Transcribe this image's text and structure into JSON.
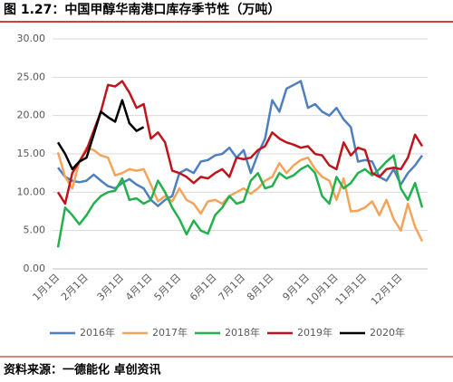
{
  "chart_data": {
    "type": "line",
    "title": "图 1.27：中国甲醇华南港口库存季节性（万吨）",
    "source": "资料来源：一德能化  卓创资讯",
    "categories": [
      "1月1日",
      null,
      null,
      null,
      "2月1日",
      null,
      null,
      null,
      null,
      "3月1日",
      null,
      null,
      null,
      "4月1日",
      null,
      null,
      null,
      "5月1日",
      null,
      null,
      null,
      null,
      "6月1日",
      null,
      null,
      null,
      "7月1日",
      null,
      null,
      null,
      "8月1日",
      null,
      null,
      null,
      null,
      "9月1日",
      null,
      null,
      null,
      "10月1日",
      null,
      null,
      null,
      "11月1日",
      null,
      null,
      null,
      null,
      "12月1日",
      null,
      null,
      null
    ],
    "ylim": [
      0,
      30
    ],
    "yticks": [
      {
        "value": 0,
        "label": "0.00"
      },
      {
        "value": 5,
        "label": "5.00"
      },
      {
        "value": 10,
        "label": "10.00"
      },
      {
        "value": 15,
        "label": "15.00"
      },
      {
        "value": 20,
        "label": "20.00"
      },
      {
        "value": 25,
        "label": "25.00"
      },
      {
        "value": 30,
        "label": "30.00"
      }
    ],
    "grid": true,
    "legend": "bottom",
    "series": [
      {
        "name": "2016年",
        "color": "#4e7fbf",
        "values": [
          13.2,
          12.0,
          11.5,
          11.3,
          11.5,
          12.3,
          11.5,
          10.8,
          10.5,
          11.2,
          11.7,
          11.0,
          10.5,
          9.0,
          8.2,
          9.0,
          9.5,
          12.5,
          13.0,
          12.5,
          14.0,
          14.2,
          14.8,
          15.0,
          15.8,
          14.5,
          15.5,
          12.5,
          15.0,
          17.0,
          22.0,
          20.5,
          23.5,
          24.0,
          24.5,
          21.0,
          21.5,
          20.5,
          20.0,
          21.0,
          19.5,
          18.5,
          14.0,
          14.2,
          14.0,
          12.0,
          11.5,
          13.0,
          11.0,
          12.5,
          13.5,
          14.8
        ]
      },
      {
        "name": "2017年",
        "color": "#f4a45a",
        "values": [
          15.2,
          12.0,
          10.5,
          14.0,
          15.8,
          15.5,
          14.8,
          14.5,
          12.2,
          12.5,
          13.0,
          12.8,
          13.0,
          11.0,
          8.8,
          9.5,
          8.8,
          10.5,
          9.0,
          8.5,
          7.2,
          8.8,
          9.0,
          8.5,
          9.5,
          10.0,
          10.5,
          9.8,
          10.5,
          11.5,
          12.0,
          13.8,
          12.5,
          13.5,
          14.2,
          14.5,
          13.0,
          12.0,
          11.5,
          9.0,
          11.8,
          7.5,
          7.6,
          8.0,
          8.8,
          7.0,
          9.0,
          6.5,
          5.0,
          8.5,
          5.5,
          3.6
        ]
      },
      {
        "name": "2018年",
        "color": "#22b14c",
        "values": [
          2.8,
          8.0,
          7.0,
          5.8,
          7.0,
          8.5,
          9.5,
          10.0,
          10.2,
          11.8,
          9.0,
          9.2,
          8.5,
          9.0,
          11.5,
          10.0,
          8.0,
          6.5,
          4.5,
          6.3,
          5.0,
          4.6,
          7.0,
          8.0,
          9.5,
          8.5,
          8.8,
          11.5,
          12.5,
          10.5,
          10.8,
          12.5,
          11.8,
          12.2,
          13.0,
          13.5,
          12.5,
          9.5,
          8.5,
          12.0,
          10.5,
          11.2,
          12.5,
          13.0,
          12.2,
          13.0,
          14.0,
          14.8,
          10.5,
          9.0,
          11.2,
          8.0
        ]
      },
      {
        "name": "2019年",
        "color": "#c0141c",
        "values": [
          10.0,
          8.5,
          12.5,
          14.0,
          15.5,
          18.0,
          20.5,
          24.0,
          23.8,
          24.5,
          23.0,
          21.0,
          21.5,
          17.0,
          17.8,
          16.5,
          12.8,
          12.5,
          12.0,
          11.2,
          12.0,
          11.8,
          12.5,
          13.0,
          12.0,
          14.5,
          14.3,
          14.5,
          15.5,
          16.0,
          17.8,
          17.0,
          16.5,
          16.2,
          15.8,
          16.0,
          15.0,
          14.8,
          13.5,
          13.0,
          16.5,
          14.8,
          15.8,
          15.5,
          12.5,
          12.0,
          13.0,
          13.2,
          13.0,
          14.5,
          17.5,
          16.0
        ]
      },
      {
        "name": "2020年",
        "color": "#000000",
        "values": [
          16.5,
          15.0,
          13.0,
          14.0,
          14.5,
          17.5,
          20.5,
          19.8,
          19.2,
          22.0,
          19.0,
          18.0,
          18.5,
          null,
          null,
          null,
          null,
          null,
          null,
          null,
          null,
          null,
          null,
          null,
          null,
          null,
          null,
          null,
          null,
          null,
          null,
          null,
          null,
          null,
          null,
          null,
          null,
          null,
          null,
          null,
          null,
          null,
          null,
          null,
          null,
          null,
          null,
          null,
          null,
          null,
          null,
          null
        ]
      }
    ]
  }
}
